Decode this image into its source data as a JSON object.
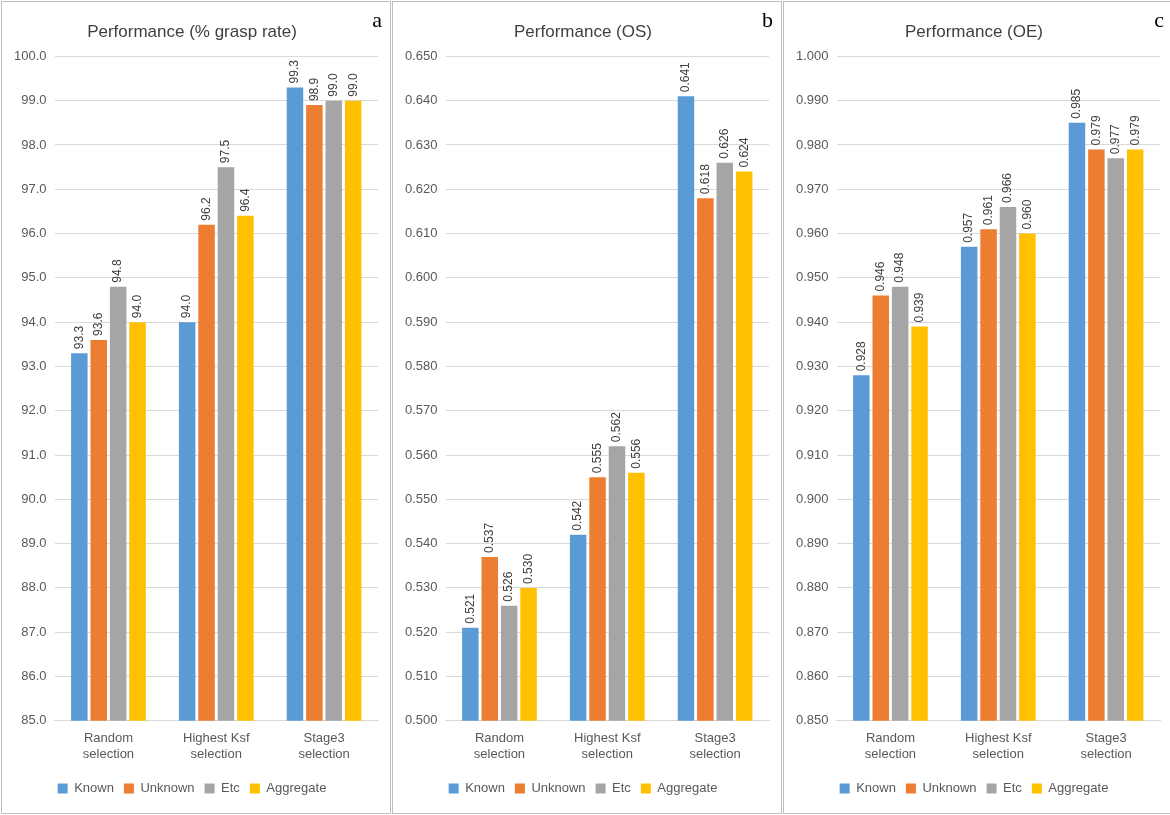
{
  "chart_data": [
    {
      "type": "bar",
      "title": "Performance (% grasp rate)",
      "annotations": [
        "a"
      ],
      "categories": [
        "Random selection",
        "Highest Ksf selection",
        "Stage3 selection"
      ],
      "series": [
        {
          "name": "Known",
          "color": "#5b9bd5",
          "values": [
            93.3,
            94.0,
            99.3
          ],
          "value_labels": [
            "93.3",
            "94.0",
            "99.3"
          ]
        },
        {
          "name": "Unknown",
          "color": "#ed7d31",
          "values": [
            93.6,
            96.2,
            98.9
          ],
          "value_labels": [
            "93.6",
            "96.2",
            "98.9"
          ]
        },
        {
          "name": "Etc",
          "color": "#a5a5a5",
          "values": [
            94.8,
            97.5,
            99.0
          ],
          "value_labels": [
            "94.8",
            "97.5",
            "99.0"
          ]
        },
        {
          "name": "Aggregate",
          "color": "#ffc000",
          "values": [
            94.0,
            96.4,
            99.0
          ],
          "value_labels": [
            "94.0",
            "96.4",
            "99.0"
          ]
        }
      ],
      "ylim": [
        85,
        100
      ],
      "yticks": [
        {
          "value": 85,
          "label": "85.0"
        },
        {
          "value": 86,
          "label": "86.0"
        },
        {
          "value": 87,
          "label": "87.0"
        },
        {
          "value": 88,
          "label": "88.0"
        },
        {
          "value": 89,
          "label": "89.0"
        },
        {
          "value": 90,
          "label": "90.0"
        },
        {
          "value": 91,
          "label": "91.0"
        },
        {
          "value": 92,
          "label": "92.0"
        },
        {
          "value": 93,
          "label": "93.0"
        },
        {
          "value": 94,
          "label": "94.0"
        },
        {
          "value": 95,
          "label": "95.0"
        },
        {
          "value": 96,
          "label": "96.0"
        },
        {
          "value": 97,
          "label": "97.0"
        },
        {
          "value": 98,
          "label": "98.0"
        },
        {
          "value": 99,
          "label": "99.0"
        },
        {
          "value": 100,
          "label": "100.0"
        }
      ],
      "grid": "y",
      "legend": "bottom"
    },
    {
      "type": "bar",
      "title": "Performance (OS)",
      "annotations": [
        "b"
      ],
      "categories": [
        "Random selection",
        "Highest Ksf selection",
        "Stage3 selection"
      ],
      "series": [
        {
          "name": "Known",
          "color": "#5b9bd5",
          "values": [
            0.521,
            0.542,
            0.641
          ],
          "value_labels": [
            "0.521",
            "0.542",
            "0.641"
          ]
        },
        {
          "name": "Unknown",
          "color": "#ed7d31",
          "values": [
            0.537,
            0.555,
            0.618
          ],
          "value_labels": [
            "0.537",
            "0.555",
            "0.618"
          ]
        },
        {
          "name": "Etc",
          "color": "#a5a5a5",
          "values": [
            0.526,
            0.562,
            0.626
          ],
          "value_labels": [
            "0.526",
            "0.562",
            "0.626"
          ]
        },
        {
          "name": "Aggregate",
          "color": "#ffc000",
          "values": [
            0.53,
            0.556,
            0.624
          ],
          "value_labels": [
            "0.530",
            "0.556",
            "0.624"
          ]
        }
      ],
      "ylim": [
        0.5,
        0.65
      ],
      "yticks": [
        {
          "value": 0.5,
          "label": "0.500"
        },
        {
          "value": 0.51,
          "label": "0.510"
        },
        {
          "value": 0.52,
          "label": "0.520"
        },
        {
          "value": 0.53,
          "label": "0.530"
        },
        {
          "value": 0.54,
          "label": "0.540"
        },
        {
          "value": 0.55,
          "label": "0.550"
        },
        {
          "value": 0.56,
          "label": "0.560"
        },
        {
          "value": 0.57,
          "label": "0.570"
        },
        {
          "value": 0.58,
          "label": "0.580"
        },
        {
          "value": 0.59,
          "label": "0.590"
        },
        {
          "value": 0.6,
          "label": "0.600"
        },
        {
          "value": 0.61,
          "label": "0.610"
        },
        {
          "value": 0.62,
          "label": "0.620"
        },
        {
          "value": 0.63,
          "label": "0.630"
        },
        {
          "value": 0.64,
          "label": "0.640"
        },
        {
          "value": 0.65,
          "label": "0.650"
        }
      ],
      "grid": "y",
      "legend": "bottom"
    },
    {
      "type": "bar",
      "title": "Performance (OE)",
      "annotations": [
        "c"
      ],
      "categories": [
        "Random selection",
        "Highest Ksf selection",
        "Stage3 selection"
      ],
      "series": [
        {
          "name": "Known",
          "color": "#5b9bd5",
          "values": [
            0.928,
            0.957,
            0.985
          ],
          "value_labels": [
            "0.928",
            "0.957",
            "0.985"
          ]
        },
        {
          "name": "Unknown",
          "color": "#ed7d31",
          "values": [
            0.946,
            0.961,
            0.979
          ],
          "value_labels": [
            "0.946",
            "0.961",
            "0.979"
          ]
        },
        {
          "name": "Etc",
          "color": "#a5a5a5",
          "values": [
            0.948,
            0.966,
            0.977
          ],
          "value_labels": [
            "0.948",
            "0.966",
            "0.977"
          ]
        },
        {
          "name": "Aggregate",
          "color": "#ffc000",
          "values": [
            0.939,
            0.96,
            0.979
          ],
          "value_labels": [
            "0.939",
            "0.960",
            "0.979"
          ]
        }
      ],
      "ylim": [
        0.85,
        1.0
      ],
      "yticks": [
        {
          "value": 0.85,
          "label": "0.850"
        },
        {
          "value": 0.86,
          "label": "0.860"
        },
        {
          "value": 0.87,
          "label": "0.870"
        },
        {
          "value": 0.88,
          "label": "0.880"
        },
        {
          "value": 0.89,
          "label": "0.890"
        },
        {
          "value": 0.9,
          "label": "0.900"
        },
        {
          "value": 0.91,
          "label": "0.910"
        },
        {
          "value": 0.92,
          "label": "0.920"
        },
        {
          "value": 0.93,
          "label": "0.930"
        },
        {
          "value": 0.94,
          "label": "0.940"
        },
        {
          "value": 0.95,
          "label": "0.950"
        },
        {
          "value": 0.96,
          "label": "0.960"
        },
        {
          "value": 0.97,
          "label": "0.970"
        },
        {
          "value": 0.98,
          "label": "0.980"
        },
        {
          "value": 0.99,
          "label": "0.990"
        },
        {
          "value": 1.0,
          "label": "1.000"
        }
      ],
      "grid": "y",
      "legend": "bottom"
    }
  ]
}
